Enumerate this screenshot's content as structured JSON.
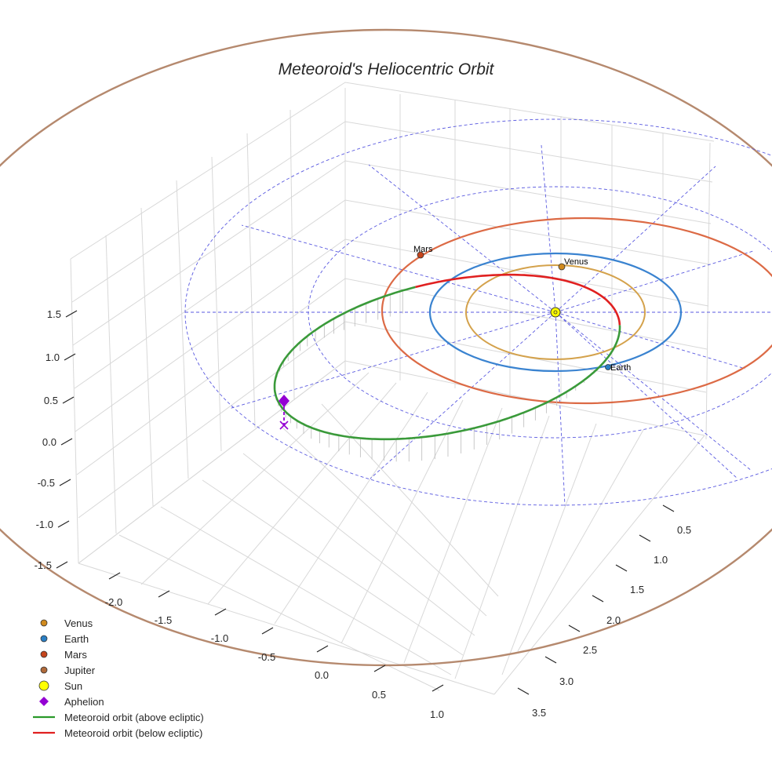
{
  "chart_data": {
    "type": "3d-line",
    "title": "Meteoroid's Heliocentric Orbit",
    "axes": {
      "x": {
        "ticks": [
          "-2.0",
          "-1.5",
          "-1.0",
          "-0.5",
          "0.0",
          "0.5",
          "1.0"
        ]
      },
      "y": {
        "ticks": [
          "0.5",
          "1.0",
          "1.5",
          "2.0",
          "2.5",
          "3.0",
          "3.5"
        ]
      },
      "z": {
        "ticks": [
          "1.5",
          "1.0",
          "0.5",
          "0.0",
          "-0.5",
          "-1.0",
          "-1.5"
        ]
      }
    },
    "planets": [
      {
        "name": "Venus",
        "label": "Venus",
        "color": "#d08a1e",
        "orbit_color": "#d4a24c"
      },
      {
        "name": "Earth",
        "label": "Earth",
        "color": "#2a7fc4",
        "orbit_color": "#3a83d0"
      },
      {
        "name": "Mars",
        "label": "Mars",
        "color": "#c5451c",
        "orbit_color": "#dc6a45"
      },
      {
        "name": "Jupiter",
        "label": "",
        "color": "#b06a3a",
        "orbit_color": "#b5896e"
      }
    ],
    "sun": {
      "name": "Sun",
      "color": "#ffff00"
    },
    "aphelion": {
      "name": "Aphelion",
      "color": "#9400d3"
    },
    "series": [
      {
        "name": "Meteoroid orbit (above ecliptic)",
        "color": "#3a9a3a"
      },
      {
        "name": "Meteoroid orbit (below ecliptic)",
        "color": "#e02020"
      }
    ],
    "legend": [
      {
        "label": "Venus",
        "marker": "circle",
        "color": "#d08a1e"
      },
      {
        "label": "Earth",
        "marker": "circle",
        "color": "#2a7fc4"
      },
      {
        "label": "Mars",
        "marker": "circle",
        "color": "#c5451c"
      },
      {
        "label": "Jupiter",
        "marker": "circle",
        "color": "#b06a3a"
      },
      {
        "label": "Sun",
        "marker": "bigcircle",
        "color": "#ffff00"
      },
      {
        "label": "Aphelion",
        "marker": "diamond",
        "color": "#9400d3"
      },
      {
        "label": "Meteoroid orbit (above ecliptic)",
        "marker": "line",
        "color": "#2a9a2a"
      },
      {
        "label": "Meteoroid orbit (below ecliptic)",
        "marker": "line",
        "color": "#e02020"
      }
    ]
  }
}
